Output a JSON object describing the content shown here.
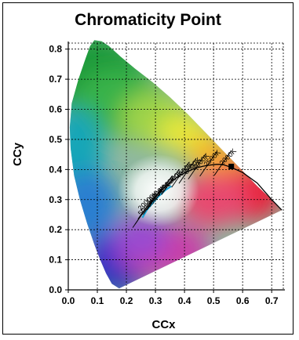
{
  "chart_data": {
    "type": "scatter",
    "title": "Chromaticity Point",
    "xlabel": "CCx",
    "ylabel": "CCy",
    "xlim": [
      0.0,
      0.74
    ],
    "ylim": [
      0.0,
      0.82
    ],
    "xticks": [
      "0.0",
      "0.1",
      "0.2",
      "0.3",
      "0.4",
      "0.5",
      "0.6",
      "0.7"
    ],
    "yticks": [
      "0.0",
      "0.1",
      "0.2",
      "0.3",
      "0.4",
      "0.5",
      "0.6",
      "0.7",
      "0.8"
    ],
    "grid": true,
    "spectral_locus": [
      [
        0.175,
        0.005
      ],
      [
        0.15,
        0.02
      ],
      [
        0.13,
        0.055
      ],
      [
        0.11,
        0.1
      ],
      [
        0.09,
        0.15
      ],
      [
        0.065,
        0.22
      ],
      [
        0.04,
        0.3
      ],
      [
        0.02,
        0.38
      ],
      [
        0.008,
        0.47
      ],
      [
        0.005,
        0.54
      ],
      [
        0.012,
        0.62
      ],
      [
        0.035,
        0.7
      ],
      [
        0.06,
        0.77
      ],
      [
        0.075,
        0.81
      ],
      [
        0.09,
        0.83
      ],
      [
        0.115,
        0.826
      ],
      [
        0.14,
        0.81
      ],
      [
        0.18,
        0.775
      ],
      [
        0.23,
        0.735
      ],
      [
        0.29,
        0.69
      ],
      [
        0.35,
        0.64
      ],
      [
        0.41,
        0.585
      ],
      [
        0.47,
        0.525
      ],
      [
        0.53,
        0.465
      ],
      [
        0.59,
        0.405
      ],
      [
        0.65,
        0.345
      ],
      [
        0.7,
        0.3
      ],
      [
        0.735,
        0.265
      ]
    ],
    "planckian_locus": [
      [
        0.24,
        0.235
      ],
      [
        0.255,
        0.255
      ],
      [
        0.27,
        0.275
      ],
      [
        0.285,
        0.293
      ],
      [
        0.3,
        0.31
      ],
      [
        0.323,
        0.333
      ],
      [
        0.346,
        0.354
      ],
      [
        0.38,
        0.378
      ],
      [
        0.41,
        0.393
      ],
      [
        0.437,
        0.404
      ],
      [
        0.46,
        0.41
      ],
      [
        0.48,
        0.414
      ],
      [
        0.51,
        0.417
      ],
      [
        0.53,
        0.417
      ],
      [
        0.559,
        0.408
      ],
      [
        0.6,
        0.39
      ],
      [
        0.65,
        0.355
      ],
      [
        0.7,
        0.3
      ],
      [
        0.735,
        0.265
      ]
    ],
    "highlight_range": [
      [
        0.255,
        0.24
      ],
      [
        0.27,
        0.265
      ],
      [
        0.29,
        0.288
      ],
      [
        0.31,
        0.31
      ],
      [
        0.335,
        0.332
      ],
      [
        0.355,
        0.345
      ]
    ],
    "cct_labels": [
      {
        "text": "50000K",
        "x": 0.25,
        "y": 0.245
      },
      {
        "text": "20000K",
        "x": 0.25,
        "y": 0.262
      },
      {
        "text": "10000K",
        "x": 0.278,
        "y": 0.283
      },
      {
        "text": "8000K",
        "x": 0.3,
        "y": 0.3
      },
      {
        "text": "6000K",
        "x": 0.322,
        "y": 0.322
      },
      {
        "text": "5000K",
        "x": 0.345,
        "y": 0.342
      },
      {
        "text": "4000K",
        "x": 0.38,
        "y": 0.368
      },
      {
        "text": "3500K",
        "x": 0.408,
        "y": 0.383
      },
      {
        "text": "3000K",
        "x": 0.437,
        "y": 0.397
      },
      {
        "text": "2500K",
        "x": 0.476,
        "y": 0.408
      },
      {
        "text": "2000K",
        "x": 0.53,
        "y": 0.412
      }
    ],
    "isotherms": [
      {
        "x": 0.246,
        "y": 0.243
      },
      {
        "x": 0.254,
        "y": 0.254
      },
      {
        "x": 0.282,
        "y": 0.287
      },
      {
        "x": 0.295,
        "y": 0.302
      },
      {
        "x": 0.322,
        "y": 0.332
      },
      {
        "x": 0.345,
        "y": 0.352
      },
      {
        "x": 0.38,
        "y": 0.377
      },
      {
        "x": 0.405,
        "y": 0.39
      },
      {
        "x": 0.437,
        "y": 0.404
      },
      {
        "x": 0.477,
        "y": 0.414
      },
      {
        "x": 0.527,
        "y": 0.417
      }
    ],
    "points": [
      {
        "x": 0.561,
        "y": 0.41
      }
    ],
    "colors": {
      "locus": "#000000",
      "highlight": "#1aa3d4",
      "marker": "#000000",
      "grid": "#000000"
    }
  }
}
